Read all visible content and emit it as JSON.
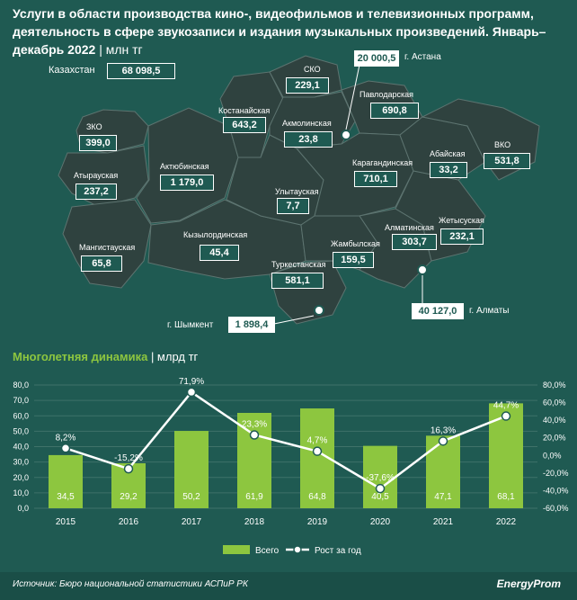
{
  "title": "Услуги в области производства кино-, видеофильмов и телевизионных программ, деятельность в сфере звукозаписи и издания музыкальных произведений. Январь–декабрь 2022",
  "title_unit": "| млн тг",
  "total": {
    "label": "Казахстан",
    "value": "68 098,5"
  },
  "regions": [
    {
      "name": "ЗКО",
      "value": "399,0"
    },
    {
      "name": "Атырауская",
      "value": "237,2"
    },
    {
      "name": "Мангистауская",
      "value": "65,8"
    },
    {
      "name": "Актюбинская",
      "value": "1 179,0"
    },
    {
      "name": "Кызылординская",
      "value": "45,4"
    },
    {
      "name": "Туркестанская",
      "value": "581,1"
    },
    {
      "name": "Костанайская",
      "value": "643,2"
    },
    {
      "name": "СКО",
      "value": "229,1"
    },
    {
      "name": "Акмолинская",
      "value": "23,8"
    },
    {
      "name": "Павлодарская",
      "value": "690,8"
    },
    {
      "name": "Карагандинская",
      "value": "710,1"
    },
    {
      "name": "Улытауская",
      "value": "7,7"
    },
    {
      "name": "Жамбылская",
      "value": "159,5"
    },
    {
      "name": "Алматинская",
      "value": "303,7"
    },
    {
      "name": "Жетысуская",
      "value": "232,1"
    },
    {
      "name": "Абайская",
      "value": "33,2"
    },
    {
      "name": "ВКО",
      "value": "531,8"
    }
  ],
  "cities": [
    {
      "name": "г. Астана",
      "value": "20 000,5"
    },
    {
      "name": "г. Алматы",
      "value": "40 127,0"
    },
    {
      "name": "г. Шымкент",
      "value": "1 898,4"
    }
  ],
  "section_title": "Многолетняя динамика",
  "section_unit": "| млрд тг",
  "source": "Источник: Бюро национальной статистики АСПиР РК",
  "brand": "EnergyProm",
  "colors": {
    "background": "#1f5a52",
    "bar": "#8dc63f",
    "line": "#ffffff"
  },
  "chart_data": {
    "type": "bar",
    "categories": [
      "2015",
      "2016",
      "2017",
      "2018",
      "2019",
      "2020",
      "2021",
      "2022"
    ],
    "series": [
      {
        "name": "Всего",
        "type": "bar",
        "axis": "left",
        "values": [
          34.5,
          29.2,
          50.2,
          61.9,
          64.8,
          40.5,
          47.1,
          68.1
        ],
        "labels": [
          "34,5",
          "29,2",
          "50,2",
          "61,9",
          "64,8",
          "40,5",
          "47,1",
          "68,1"
        ]
      },
      {
        "name": "Рост за год",
        "type": "line",
        "axis": "right",
        "values": [
          8.2,
          -15.2,
          71.9,
          23.3,
          4.7,
          -37.6,
          16.3,
          44.7
        ],
        "labels": [
          "8,2%",
          "-15,2%",
          "71,9%",
          "23,3%",
          "4,7%",
          "-37,6%",
          "16,3%",
          "44,7%"
        ]
      }
    ],
    "ylim_left": [
      0,
      80
    ],
    "ylim_right": [
      -60,
      80
    ],
    "yticks_left": [
      "0,0",
      "10,0",
      "20,0",
      "30,0",
      "40,0",
      "50,0",
      "60,0",
      "70,0",
      "80,0"
    ],
    "yticks_right": [
      "-60,0%",
      "-40,0%",
      "-20,0%",
      "0,0%",
      "20,0%",
      "40,0%",
      "60,0%",
      "80,0%"
    ],
    "grid": true,
    "legend": "bottom"
  }
}
